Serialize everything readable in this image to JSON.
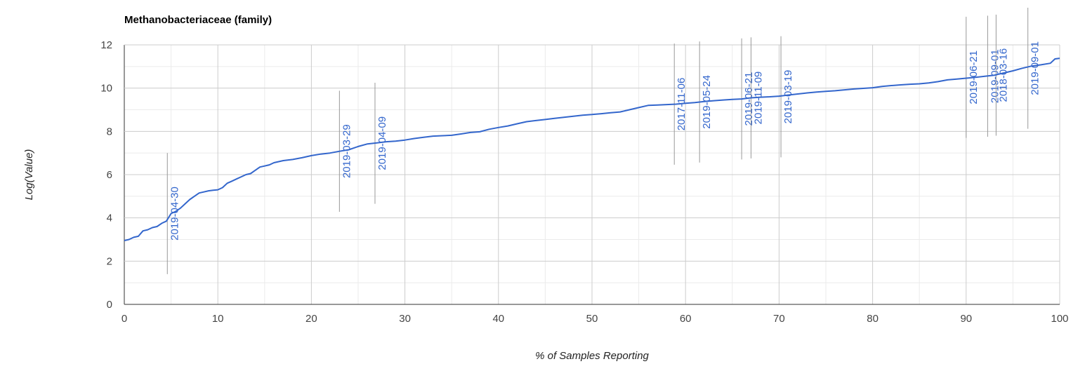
{
  "chart_data": {
    "type": "line",
    "title": "Methanobacteriaceae (family)",
    "xlabel": "% of Samples Reporting",
    "ylabel": "Log(Value)",
    "xlim": [
      0,
      100
    ],
    "ylim": [
      0,
      12
    ],
    "x_ticks": [
      0,
      10,
      20,
      30,
      40,
      50,
      60,
      70,
      80,
      90,
      100
    ],
    "y_ticks": [
      0,
      2,
      4,
      6,
      8,
      10,
      12
    ],
    "grid": true,
    "series_color": "#3366cc",
    "series": [
      {
        "x": [
          0,
          0.5,
          1,
          1.5,
          2,
          2.5,
          3,
          3.5,
          4,
          4.5,
          5,
          5.5,
          6,
          6.5,
          7,
          7.5,
          8,
          8.5,
          9,
          9.5,
          10,
          10.5,
          11,
          11.5,
          12,
          12.5,
          13,
          13.5,
          14,
          14.5,
          15,
          15.5,
          16,
          17,
          18,
          19,
          20,
          21,
          22,
          23,
          24,
          25,
          26,
          27,
          28,
          29,
          30,
          31,
          32,
          33,
          34,
          35,
          36,
          37,
          38,
          39,
          40,
          41,
          42,
          43,
          44,
          45,
          46,
          47,
          48,
          49,
          50,
          51,
          52,
          53,
          54,
          55,
          56,
          57,
          58,
          59,
          60,
          61,
          62,
          63,
          64,
          65,
          66,
          67,
          68,
          69,
          70,
          71,
          72,
          73,
          74,
          75,
          76,
          77,
          78,
          79,
          80,
          81,
          82,
          83,
          84,
          85,
          86,
          87,
          88,
          89,
          90,
          91,
          92,
          93,
          94,
          95,
          96,
          97,
          98,
          99,
          99.5,
          100
        ],
        "y": [
          2.95,
          3.0,
          3.1,
          3.15,
          3.4,
          3.45,
          3.55,
          3.6,
          3.75,
          3.85,
          4.2,
          4.3,
          4.45,
          4.65,
          4.85,
          5.0,
          5.15,
          5.2,
          5.25,
          5.28,
          5.3,
          5.4,
          5.6,
          5.7,
          5.8,
          5.9,
          6.0,
          6.05,
          6.2,
          6.35,
          6.4,
          6.45,
          6.55,
          6.65,
          6.7,
          6.78,
          6.88,
          6.95,
          7.0,
          7.08,
          7.15,
          7.3,
          7.42,
          7.47,
          7.52,
          7.55,
          7.6,
          7.67,
          7.73,
          7.78,
          7.8,
          7.82,
          7.88,
          7.95,
          7.98,
          8.1,
          8.18,
          8.25,
          8.35,
          8.45,
          8.5,
          8.55,
          8.6,
          8.65,
          8.7,
          8.75,
          8.78,
          8.82,
          8.86,
          8.9,
          9.0,
          9.1,
          9.2,
          9.22,
          9.24,
          9.26,
          9.3,
          9.33,
          9.38,
          9.42,
          9.45,
          9.48,
          9.5,
          9.55,
          9.58,
          9.6,
          9.63,
          9.68,
          9.73,
          9.78,
          9.82,
          9.85,
          9.88,
          9.92,
          9.96,
          9.99,
          10.02,
          10.08,
          10.12,
          10.15,
          10.18,
          10.2,
          10.24,
          10.3,
          10.38,
          10.42,
          10.46,
          10.5,
          10.55,
          10.6,
          10.7,
          10.8,
          10.92,
          11.02,
          11.08,
          11.15,
          11.35,
          11.38
        ]
      }
    ],
    "annotations": [
      {
        "x": 4.6,
        "y": 4.2,
        "label": "2019-04-30"
      },
      {
        "x": 23.0,
        "y": 7.08,
        "label": "2019-03-29"
      },
      {
        "x": 26.8,
        "y": 7.45,
        "label": "2019-04-09"
      },
      {
        "x": 58.8,
        "y": 9.26,
        "label": "2017-11-06"
      },
      {
        "x": 61.5,
        "y": 9.36,
        "label": "2019-05-24"
      },
      {
        "x": 66.0,
        "y": 9.5,
        "label": "2019-06-21"
      },
      {
        "x": 67.0,
        "y": 9.55,
        "label": "2019-11-09"
      },
      {
        "x": 70.2,
        "y": 9.6,
        "label": "2019-03-19"
      },
      {
        "x": 90.0,
        "y": 10.5,
        "label": "2019-06-21"
      },
      {
        "x": 92.3,
        "y": 10.55,
        "label": "2019-09-01"
      },
      {
        "x": 93.2,
        "y": 10.6,
        "label": "2018-03-16"
      },
      {
        "x": 96.6,
        "y": 10.92,
        "label": "2019-09-01"
      }
    ]
  }
}
